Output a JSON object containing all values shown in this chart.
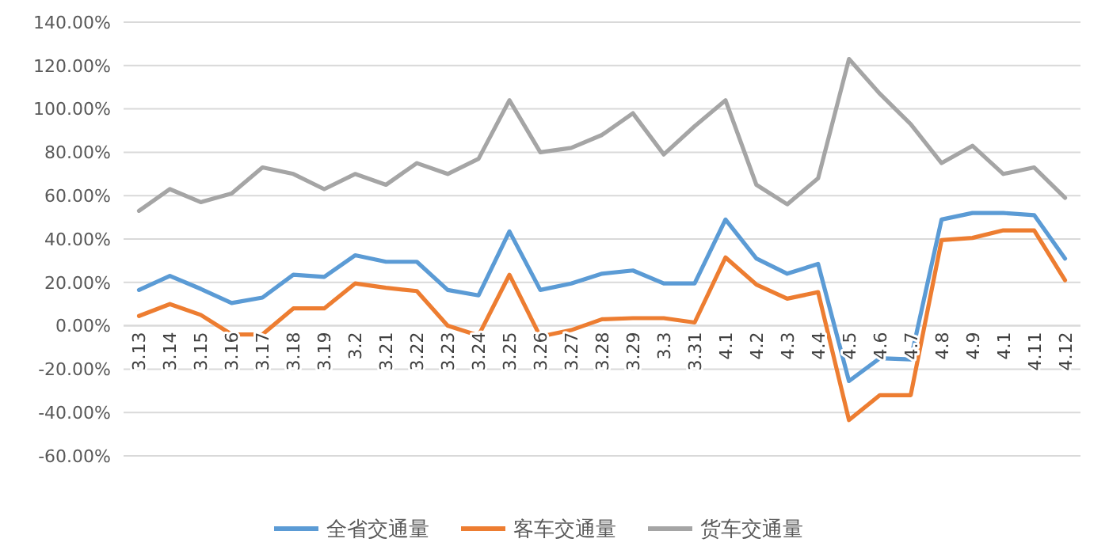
{
  "chart_data": {
    "type": "line",
    "categories": [
      "3.13",
      "3.14",
      "3.15",
      "3.16",
      "3.17",
      "3.18",
      "3.19",
      "3.2",
      "3.21",
      "3.22",
      "3.23",
      "3.24",
      "3.25",
      "3.26",
      "3.27",
      "3.28",
      "3.29",
      "3.3",
      "3.31",
      "4.1",
      "4.2",
      "4.3",
      "4.4",
      "4.5",
      "4.6",
      "4.7",
      "4.8",
      "4.9",
      "4.1",
      "4.11",
      "4.12"
    ],
    "series": [
      {
        "name": "全省交通量",
        "color": "#5b9bd5",
        "values": [
          16.5,
          23,
          17,
          10.5,
          13,
          23.5,
          22.5,
          32.5,
          29.5,
          29.5,
          16.5,
          14,
          43.5,
          16.5,
          19.5,
          24,
          25.5,
          19.5,
          19.5,
          49,
          31,
          24,
          28.5,
          -25.5,
          -15,
          -15.5,
          49,
          52,
          52,
          51,
          31
        ]
      },
      {
        "name": "客车交通量",
        "color": "#ed7d31",
        "values": [
          4.5,
          10,
          5,
          -4,
          -4,
          8,
          8,
          19.5,
          17.5,
          16,
          0,
          -4.5,
          23.5,
          -5,
          -2,
          3,
          3.5,
          3.5,
          1.5,
          31.5,
          19,
          12.5,
          15.5,
          -43.5,
          -32,
          -32,
          39.5,
          40.5,
          44,
          44,
          21
        ]
      },
      {
        "name": "货车交通量",
        "color": "#a5a5a5",
        "values": [
          53,
          63,
          57,
          61,
          73,
          70,
          63,
          70,
          65,
          75,
          70,
          77,
          104,
          80,
          82,
          88,
          98,
          79,
          92,
          104,
          65,
          56,
          68,
          123,
          107,
          93,
          75,
          83,
          70,
          73,
          59
        ]
      }
    ],
    "ylim": [
      -60,
      140
    ],
    "yticks": [
      {
        "value": -60,
        "label": "-60.00%"
      },
      {
        "value": -40,
        "label": "-40.00%"
      },
      {
        "value": -20,
        "label": "-20.00%"
      },
      {
        "value": 0,
        "label": "0.00%"
      },
      {
        "value": 20,
        "label": "20.00%"
      },
      {
        "value": 40,
        "label": "40.00%"
      },
      {
        "value": 60,
        "label": "60.00%"
      },
      {
        "value": 80,
        "label": "80.00%"
      },
      {
        "value": 100,
        "label": "100.00%"
      },
      {
        "value": 120,
        "label": "120.00%"
      },
      {
        "value": 140,
        "label": "140.00%"
      }
    ],
    "grid": "y",
    "legend": "bottom",
    "marker": "none",
    "line_style": "solid"
  }
}
